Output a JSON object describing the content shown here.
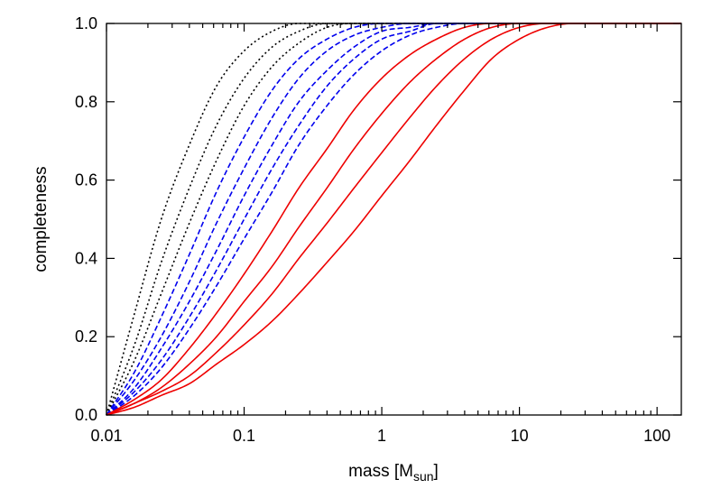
{
  "chart_data": {
    "type": "line",
    "title": "",
    "xlabel": "mass [M",
    "xlabel_sub": "sun",
    "xlabel_end": "]",
    "ylabel": "completeness",
    "xscale": "log",
    "xlim": [
      0.01,
      150
    ],
    "ylim": [
      0,
      1
    ],
    "grid": false,
    "legend": "none",
    "x_ticks": [
      0.01,
      0.1,
      1,
      10,
      100
    ],
    "x_tick_labels": [
      "0.01",
      "0.1",
      "1",
      "10",
      "100"
    ],
    "y_ticks": [
      0,
      0.2,
      0.4,
      0.6,
      0.8,
      1
    ],
    "y_tick_labels": [
      "0.0",
      "0.2",
      "0.4",
      "0.6",
      "0.8",
      "1.0"
    ],
    "curve_model": "smoothstep in log10(mass) from 0.01 to the full-completeness mass",
    "series": [
      {
        "color": "#000000",
        "style": "dotted",
        "x": [
          0.01,
          0.016,
          0.025,
          0.04,
          0.063,
          0.1,
          0.16,
          0.25,
          0.4,
          0.63,
          1.0,
          150
        ],
        "y": [
          0,
          0.26,
          0.5,
          0.69,
          0.84,
          0.93,
          0.98,
          1.0,
          1.0,
          1.0,
          1.0,
          1.0
        ]
      },
      {
        "color": "#000000",
        "style": "dotted",
        "x": [
          0.01,
          0.016,
          0.025,
          0.04,
          0.063,
          0.1,
          0.16,
          0.25,
          0.4,
          0.63,
          1.0,
          150
        ],
        "y": [
          0,
          0.18,
          0.39,
          0.58,
          0.74,
          0.86,
          0.94,
          0.98,
          1.0,
          1.0,
          1.0,
          1.0
        ]
      },
      {
        "color": "#000000",
        "style": "dotted",
        "x": [
          0.01,
          0.016,
          0.025,
          0.04,
          0.063,
          0.1,
          0.16,
          0.25,
          0.4,
          0.63,
          1.0,
          150
        ],
        "y": [
          0,
          0.14,
          0.31,
          0.49,
          0.65,
          0.79,
          0.89,
          0.95,
          0.99,
          1.0,
          1.0,
          1.0
        ]
      },
      {
        "color": "#0000ee",
        "style": "dashed",
        "x": [
          0.01,
          0.016,
          0.025,
          0.04,
          0.063,
          0.1,
          0.16,
          0.25,
          0.4,
          0.63,
          1.0,
          1.6,
          150
        ],
        "y": [
          0,
          0.11,
          0.25,
          0.41,
          0.57,
          0.71,
          0.83,
          0.91,
          0.96,
          0.99,
          1.0,
          1.0,
          1.0
        ]
      },
      {
        "color": "#0000ee",
        "style": "dashed",
        "x": [
          0.01,
          0.016,
          0.025,
          0.04,
          0.063,
          0.1,
          0.16,
          0.25,
          0.4,
          0.63,
          1.0,
          1.6,
          150
        ],
        "y": [
          0,
          0.09,
          0.2,
          0.34,
          0.49,
          0.63,
          0.76,
          0.86,
          0.93,
          0.97,
          0.99,
          1.0,
          1.0
        ]
      },
      {
        "color": "#0000ee",
        "style": "dashed",
        "x": [
          0.01,
          0.016,
          0.025,
          0.04,
          0.063,
          0.1,
          0.16,
          0.25,
          0.4,
          0.63,
          1.0,
          1.6,
          2.5,
          150
        ],
        "y": [
          0,
          0.07,
          0.17,
          0.29,
          0.42,
          0.56,
          0.69,
          0.8,
          0.88,
          0.94,
          0.98,
          0.99,
          1.0,
          1.0
        ]
      },
      {
        "color": "#0000ee",
        "style": "dashed",
        "x": [
          0.01,
          0.016,
          0.025,
          0.04,
          0.063,
          0.1,
          0.16,
          0.25,
          0.4,
          0.63,
          1.0,
          1.6,
          2.5,
          4.0,
          150
        ],
        "y": [
          0,
          0.06,
          0.14,
          0.25,
          0.37,
          0.5,
          0.63,
          0.74,
          0.84,
          0.91,
          0.96,
          0.98,
          1.0,
          1.0,
          1.0
        ]
      },
      {
        "color": "#0000ee",
        "style": "dashed",
        "x": [
          0.01,
          0.016,
          0.025,
          0.04,
          0.063,
          0.1,
          0.16,
          0.25,
          0.4,
          0.63,
          1.0,
          1.6,
          2.5,
          4.0,
          150
        ],
        "y": [
          0,
          0.05,
          0.12,
          0.22,
          0.33,
          0.45,
          0.57,
          0.69,
          0.79,
          0.87,
          0.93,
          0.97,
          0.99,
          1.0,
          1.0
        ]
      },
      {
        "color": "#ee0000",
        "style": "solid",
        "x": [
          0.01,
          0.016,
          0.025,
          0.04,
          0.063,
          0.1,
          0.16,
          0.25,
          0.4,
          0.63,
          1.0,
          1.6,
          2.5,
          4.0,
          6.3,
          150
        ],
        "y": [
          0,
          0.04,
          0.09,
          0.17,
          0.26,
          0.36,
          0.47,
          0.58,
          0.68,
          0.78,
          0.86,
          0.92,
          0.96,
          0.99,
          1.0,
          1.0
        ]
      },
      {
        "color": "#ee0000",
        "style": "solid",
        "x": [
          0.01,
          0.016,
          0.025,
          0.04,
          0.063,
          0.1,
          0.16,
          0.25,
          0.4,
          0.63,
          1.0,
          1.6,
          2.5,
          4.0,
          6.3,
          10,
          150
        ],
        "y": [
          0,
          0.03,
          0.07,
          0.13,
          0.2,
          0.29,
          0.38,
          0.48,
          0.58,
          0.68,
          0.77,
          0.85,
          0.91,
          0.96,
          0.99,
          1.0,
          1.0
        ]
      },
      {
        "color": "#ee0000",
        "style": "solid",
        "x": [
          0.01,
          0.016,
          0.025,
          0.04,
          0.063,
          0.1,
          0.16,
          0.25,
          0.4,
          0.63,
          1.0,
          1.6,
          2.5,
          4.0,
          6.3,
          10,
          16,
          150
        ],
        "y": [
          0,
          0.03,
          0.06,
          0.1,
          0.16,
          0.23,
          0.31,
          0.4,
          0.49,
          0.58,
          0.67,
          0.76,
          0.84,
          0.91,
          0.96,
          0.99,
          1.0,
          1.0
        ]
      },
      {
        "color": "#ee0000",
        "style": "solid",
        "x": [
          0.01,
          0.016,
          0.025,
          0.04,
          0.063,
          0.1,
          0.16,
          0.25,
          0.4,
          0.63,
          1.0,
          1.6,
          2.5,
          4.0,
          6.3,
          10,
          16,
          25,
          150
        ],
        "y": [
          0,
          0.02,
          0.05,
          0.08,
          0.13,
          0.18,
          0.24,
          0.31,
          0.39,
          0.47,
          0.56,
          0.65,
          0.74,
          0.83,
          0.91,
          0.96,
          0.99,
          1.0,
          1.0
        ]
      }
    ]
  }
}
